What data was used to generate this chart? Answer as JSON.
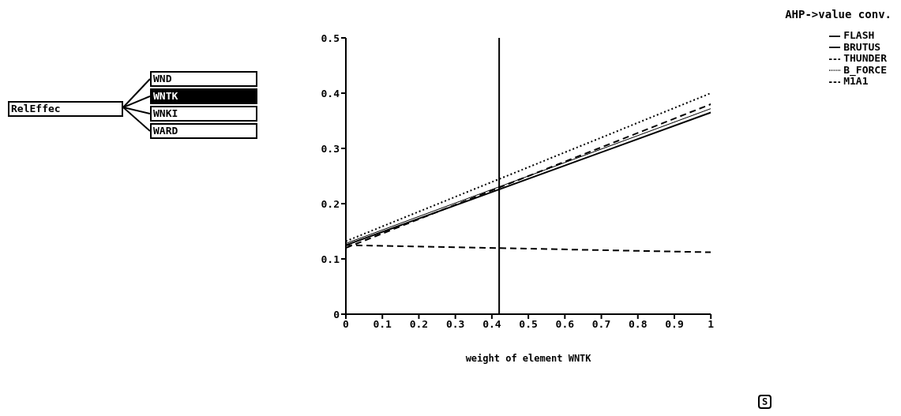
{
  "chart_data": {
    "type": "line",
    "title": "AHP->value conv.",
    "xlabel": "weight of element WNTK",
    "x": [
      0,
      1
    ],
    "series": [
      {
        "name": "FLASH",
        "color": "#000000",
        "values": [
          0.125,
          0.365
        ],
        "line_style": "solid"
      },
      {
        "name": "BRUTUS",
        "color": "#000000",
        "values": [
          0.128,
          0.372
        ],
        "line_style": "solid"
      },
      {
        "name": "THUNDER",
        "color": "#000000",
        "values": [
          0.12,
          0.38
        ],
        "line_style": "dashed"
      },
      {
        "name": "B_FORCE",
        "color": "#000000",
        "values": [
          0.132,
          0.4
        ],
        "line_style": "dotted"
      },
      {
        "name": "M1A1",
        "color": "#000000",
        "values": [
          0.125,
          0.112
        ],
        "line_style": "dashed"
      }
    ],
    "xlim": [
      0,
      1
    ],
    "xticks": [
      0,
      0.1,
      0.2,
      0.3,
      0.4,
      0.5,
      0.6,
      0.7,
      0.8,
      0.9,
      1
    ],
    "ylim": [
      0,
      0.5
    ],
    "yticks": [
      0,
      0.1,
      0.2,
      0.3,
      0.4,
      0.5
    ],
    "ref_lines": [
      {
        "axis": "x",
        "value": 0.42,
        "color": "#000000"
      }
    ],
    "annotations": [
      "RelEffec",
      "WND",
      "WNTK",
      "WNKI",
      "WARD",
      "S"
    ],
    "legend": "top right",
    "grid": false,
    "marker": "none"
  }
}
